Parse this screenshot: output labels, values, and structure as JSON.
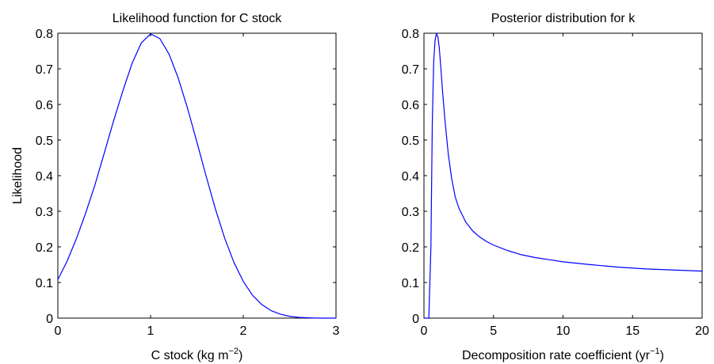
{
  "chart_data": [
    {
      "type": "line",
      "title": "Likelihood function for C stock",
      "xlabel": "C stock (kg m",
      "xlabel_sup": "−2",
      "xlabel_end": ")",
      "ylabel": "Likelihood",
      "xlim": [
        0,
        3
      ],
      "ylim": [
        0,
        0.8
      ],
      "xticks": [
        "0",
        "1",
        "2",
        "3"
      ],
      "yticks": [
        "0",
        "0.1",
        "0.2",
        "0.3",
        "0.4",
        "0.5",
        "0.6",
        "0.7",
        "0.8"
      ],
      "grid": false,
      "color": "#0000ff",
      "series": [
        {
          "x": [
            0,
            0.1,
            0.2,
            0.3,
            0.4,
            0.5,
            0.6,
            0.7,
            0.8,
            0.9,
            1.0,
            1.1,
            1.2,
            1.3,
            1.4,
            1.5,
            1.6,
            1.7,
            1.8,
            1.9,
            2.0,
            2.1,
            2.2,
            2.3,
            2.4,
            2.5,
            2.6,
            2.7,
            2.8,
            2.9,
            3.0
          ],
          "y": [
            0.108,
            0.16,
            0.223,
            0.295,
            0.374,
            0.463,
            0.553,
            0.637,
            0.715,
            0.773,
            0.798,
            0.785,
            0.741,
            0.673,
            0.588,
            0.494,
            0.398,
            0.306,
            0.224,
            0.156,
            0.103,
            0.064,
            0.038,
            0.021,
            0.011,
            0.005,
            0.002,
            0.001,
            0.0,
            0.0,
            0.0
          ]
        }
      ]
    },
    {
      "type": "line",
      "title": "Posterior distribution for k",
      "xlabel": "Decomposition rate coefficient (yr",
      "xlabel_sup": "−1",
      "xlabel_end": ")",
      "ylabel": "",
      "xlim": [
        0,
        20
      ],
      "ylim": [
        0,
        0.8
      ],
      "xticks": [
        "0",
        "5",
        "10",
        "15",
        "20"
      ],
      "yticks": [
        "0",
        "0.1",
        "0.2",
        "0.3",
        "0.4",
        "0.5",
        "0.6",
        "0.7",
        "0.8"
      ],
      "grid": false,
      "color": "#0000ff",
      "series": [
        {
          "x": [
            0.0,
            0.2,
            0.35,
            0.5,
            0.6,
            0.7,
            0.8,
            0.9,
            1.0,
            1.1,
            1.2,
            1.35,
            1.5,
            1.75,
            2.0,
            2.25,
            2.5,
            3.0,
            3.5,
            4.0,
            4.5,
            5.0,
            6.0,
            7.0,
            8.0,
            9.0,
            10.0,
            12.0,
            14.0,
            16.0,
            18.0,
            20.0
          ],
          "y": [
            0.0,
            0.0,
            0.0,
            0.2,
            0.55,
            0.72,
            0.78,
            0.8,
            0.79,
            0.76,
            0.71,
            0.63,
            0.56,
            0.46,
            0.39,
            0.34,
            0.31,
            0.27,
            0.245,
            0.228,
            0.215,
            0.205,
            0.19,
            0.178,
            0.17,
            0.164,
            0.158,
            0.15,
            0.143,
            0.138,
            0.135,
            0.132
          ]
        }
      ]
    }
  ]
}
